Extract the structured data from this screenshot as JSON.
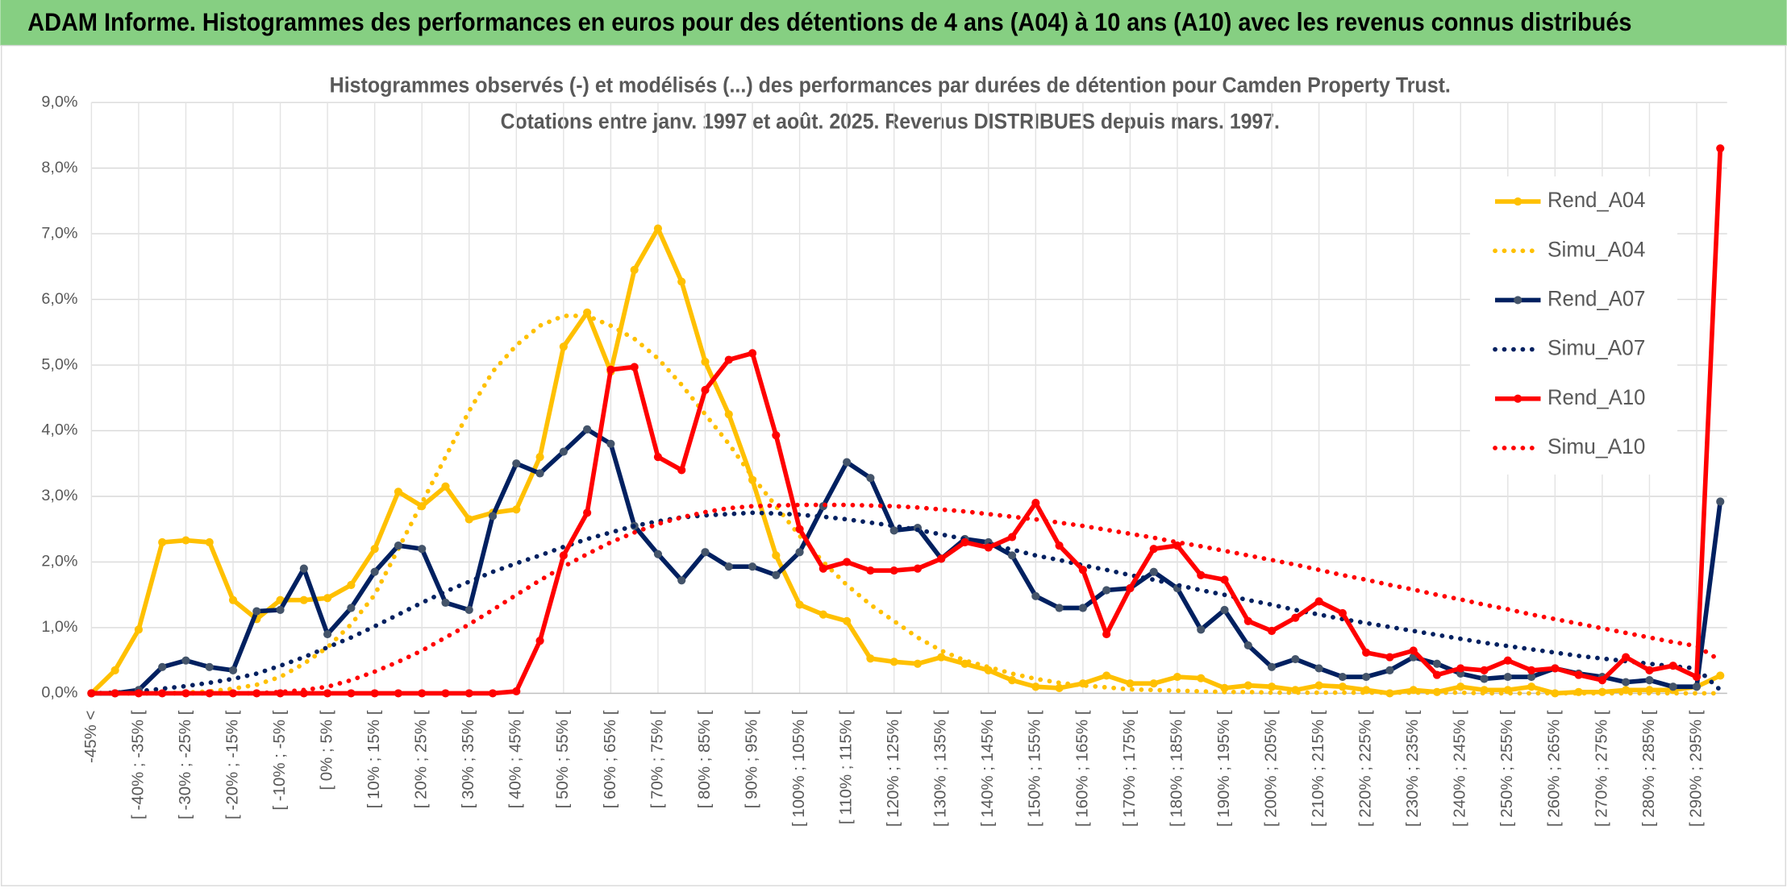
{
  "header": {
    "title": "ADAM Informe. Histogrammes des performances en euros pour des détentions de 4 ans (A04) à 10 ans (A10) avec les revenus connus distribués"
  },
  "chart_data": {
    "type": "line",
    "title": "Histogrammes observés (-) et modélisés (...) des performances par durées de détention pour Camden Property Trust.",
    "subtitle": "Cotations entre janv. 1997 et août. 2025. Revenus DISTRIBUES depuis mars. 1997.",
    "categories": [
      "-45% <",
      null,
      "[ -40% ; -35% [",
      null,
      "[ -30% ; -25% [",
      null,
      "[ -20% ; -15% [",
      null,
      "[ -10% ; -5% [",
      null,
      "[ 0% ; 5% [",
      null,
      "[ 10% ; 15% [",
      null,
      "[ 20% ; 25% [",
      null,
      "[ 30% ; 35% [",
      null,
      "[ 40% ; 45% [",
      null,
      "[ 50% ; 55% [",
      null,
      "[ 60% ; 65% [",
      null,
      "[ 70% ; 75% [",
      null,
      "[ 80% ; 85% [",
      null,
      "[ 90% ; 95% [",
      null,
      "[ 100% ; 105% [",
      null,
      "[ 110% ; 115% [",
      null,
      "[ 120% ; 125% [",
      null,
      "[ 130% ; 135% [",
      null,
      "[ 140% ; 145% [",
      null,
      "[ 150% ; 155% [",
      null,
      "[ 160% ; 165% [",
      null,
      "[ 170% ; 175% [",
      null,
      "[ 180% ; 185% [",
      null,
      "[ 190% ; 195% [",
      null,
      "[ 200% ; 205% [",
      null,
      "[ 210% ; 215% [",
      null,
      "[ 220% ; 225% [",
      null,
      "[ 230% ; 235% [",
      null,
      "[ 240% ; 245% [",
      null,
      "[ 250% ; 255% [",
      null,
      "[ 260% ; 265% [",
      null,
      "[ 270% ; 275% [",
      null,
      "[ 280% ; 285% [",
      null,
      "[ 290% ; 295% [",
      null
    ],
    "series": [
      {
        "name": "Rend_A04",
        "color": "#FFC000",
        "marker_color": "#FFC000",
        "line_style": "solid",
        "marker": true,
        "values": [
          0,
          0.35,
          0.97,
          2.3,
          2.33,
          2.3,
          1.42,
          1.13,
          1.42,
          1.42,
          1.45,
          1.65,
          2.2,
          3.07,
          2.85,
          3.15,
          2.65,
          2.75,
          2.8,
          3.6,
          5.28,
          5.8,
          4.9,
          6.45,
          7.08,
          6.27,
          5.05,
          4.25,
          3.25,
          2.1,
          1.35,
          1.2,
          1.1,
          0.53,
          0.48,
          0.45,
          0.55,
          0.45,
          0.35,
          0.2,
          0.1,
          0.08,
          0.15,
          0.27,
          0.15,
          0.15,
          0.25,
          0.23,
          0.08,
          0.12,
          0.1,
          0.05,
          0.12,
          0.1,
          0.05,
          0,
          0.05,
          0.02,
          0.1,
          0.05,
          0.05,
          0.1,
          0,
          0.02,
          0.02,
          0.05,
          0.05,
          0.05,
          0.1,
          0.27
        ]
      },
      {
        "name": "Simu_A04",
        "color": "#FFC000",
        "line_style": "dotted",
        "marker": false,
        "values": [
          0,
          0,
          0,
          0,
          0.01,
          0.03,
          0.07,
          0.13,
          0.25,
          0.45,
          0.7,
          1.05,
          1.5,
          2.2,
          2.9,
          3.6,
          4.3,
          4.9,
          5.3,
          5.6,
          5.75,
          5.75,
          5.6,
          5.4,
          5.1,
          4.7,
          4.25,
          3.8,
          3.3,
          2.85,
          2.4,
          2.0,
          1.65,
          1.35,
          1.1,
          0.85,
          0.65,
          0.5,
          0.4,
          0.3,
          0.22,
          0.16,
          0.12,
          0.09,
          0.06,
          0.05,
          0.04,
          0.03,
          0.02,
          0.02,
          0.01,
          0.01,
          0.01,
          0.01,
          0.01,
          0.01,
          0.01,
          0.01,
          0.01,
          0,
          0,
          0,
          0,
          0,
          0,
          0,
          0,
          0,
          0,
          0
        ]
      },
      {
        "name": "Rend_A07",
        "color": "#002060",
        "marker_color": "#44546A",
        "line_style": "solid",
        "marker": true,
        "values": [
          0,
          0,
          0.05,
          0.4,
          0.5,
          0.4,
          0.35,
          1.25,
          1.27,
          1.9,
          0.9,
          1.3,
          1.85,
          2.25,
          2.2,
          1.38,
          1.27,
          2.7,
          3.5,
          3.35,
          3.68,
          4.02,
          3.8,
          2.55,
          2.12,
          1.72,
          2.15,
          1.93,
          1.93,
          1.8,
          2.15,
          2.85,
          3.52,
          3.28,
          2.48,
          2.52,
          2.05,
          2.35,
          2.3,
          2.1,
          1.48,
          1.3,
          1.3,
          1.57,
          1.6,
          1.85,
          1.6,
          0.97,
          1.27,
          0.73,
          0.4,
          0.52,
          0.38,
          0.25,
          0.25,
          0.35,
          0.55,
          0.45,
          0.3,
          0.22,
          0.25,
          0.25,
          0.38,
          0.3,
          0.25,
          0.17,
          0.2,
          0.1,
          0.1,
          2.92
        ]
      },
      {
        "name": "Simu_A07",
        "color": "#002060",
        "line_style": "dotted",
        "marker": false,
        "values": [
          0,
          0.01,
          0.03,
          0.07,
          0.11,
          0.16,
          0.22,
          0.3,
          0.42,
          0.55,
          0.7,
          0.85,
          1.02,
          1.2,
          1.38,
          1.55,
          1.7,
          1.85,
          1.98,
          2.1,
          2.23,
          2.35,
          2.45,
          2.55,
          2.62,
          2.68,
          2.71,
          2.73,
          2.75,
          2.74,
          2.72,
          2.69,
          2.65,
          2.6,
          2.55,
          2.49,
          2.42,
          2.35,
          2.27,
          2.19,
          2.1,
          2.03,
          1.95,
          1.88,
          1.8,
          1.73,
          1.65,
          1.57,
          1.5,
          1.42,
          1.35,
          1.27,
          1.2,
          1.13,
          1.07,
          1.01,
          0.95,
          0.89,
          0.83,
          0.77,
          0.72,
          0.67,
          0.62,
          0.57,
          0.53,
          0.49,
          0.45,
          0.41,
          0.38,
          0.05
        ]
      },
      {
        "name": "Rend_A10",
        "color": "#FF0000",
        "marker_color": "#FF0000",
        "line_style": "solid",
        "marker": true,
        "values": [
          0,
          0,
          0,
          0,
          0,
          0,
          0,
          0,
          0,
          0,
          0,
          0,
          0,
          0,
          0,
          0,
          0,
          0,
          0.03,
          0.8,
          2.1,
          2.75,
          4.93,
          4.97,
          3.6,
          3.4,
          4.62,
          5.08,
          5.18,
          3.93,
          2.5,
          1.9,
          2.0,
          1.87,
          1.87,
          1.9,
          2.05,
          2.3,
          2.22,
          2.38,
          2.9,
          2.25,
          1.88,
          0.9,
          1.6,
          2.2,
          2.25,
          1.8,
          1.73,
          1.1,
          0.95,
          1.15,
          1.4,
          1.22,
          0.62,
          0.55,
          0.65,
          0.28,
          0.38,
          0.35,
          0.5,
          0.35,
          0.38,
          0.28,
          0.2,
          0.55,
          0.35,
          0.42,
          0.25,
          8.3
        ]
      },
      {
        "name": "Simu_A10",
        "color": "#FF0000",
        "line_style": "dotted",
        "marker": false,
        "values": [
          0,
          0,
          0,
          0,
          0,
          0,
          0,
          0,
          0.02,
          0.05,
          0.1,
          0.2,
          0.33,
          0.48,
          0.65,
          0.85,
          1.05,
          1.27,
          1.5,
          1.72,
          1.93,
          2.12,
          2.3,
          2.45,
          2.58,
          2.68,
          2.76,
          2.82,
          2.85,
          2.86,
          2.87,
          2.87,
          2.87,
          2.86,
          2.85,
          2.83,
          2.8,
          2.77,
          2.73,
          2.69,
          2.65,
          2.6,
          2.55,
          2.49,
          2.43,
          2.37,
          2.3,
          2.24,
          2.17,
          2.1,
          2.03,
          1.96,
          1.88,
          1.8,
          1.73,
          1.65,
          1.58,
          1.5,
          1.43,
          1.35,
          1.28,
          1.2,
          1.13,
          1.06,
          0.99,
          0.92,
          0.85,
          0.78,
          0.72,
          0.5
        ]
      }
    ],
    "ylim": [
      0,
      9
    ],
    "yticks": [
      {
        "value": 0,
        "label": "0,0%"
      },
      {
        "value": 1,
        "label": "1,0%"
      },
      {
        "value": 2,
        "label": "2,0%"
      },
      {
        "value": 3,
        "label": "3,0%"
      },
      {
        "value": 4,
        "label": "4,0%"
      },
      {
        "value": 5,
        "label": "5,0%"
      },
      {
        "value": 6,
        "label": "6,0%"
      },
      {
        "value": 7,
        "label": "7,0%"
      },
      {
        "value": 8,
        "label": "8,0%"
      },
      {
        "value": 9,
        "label": "9,0%"
      }
    ],
    "grid": true,
    "legend": "upper right"
  }
}
